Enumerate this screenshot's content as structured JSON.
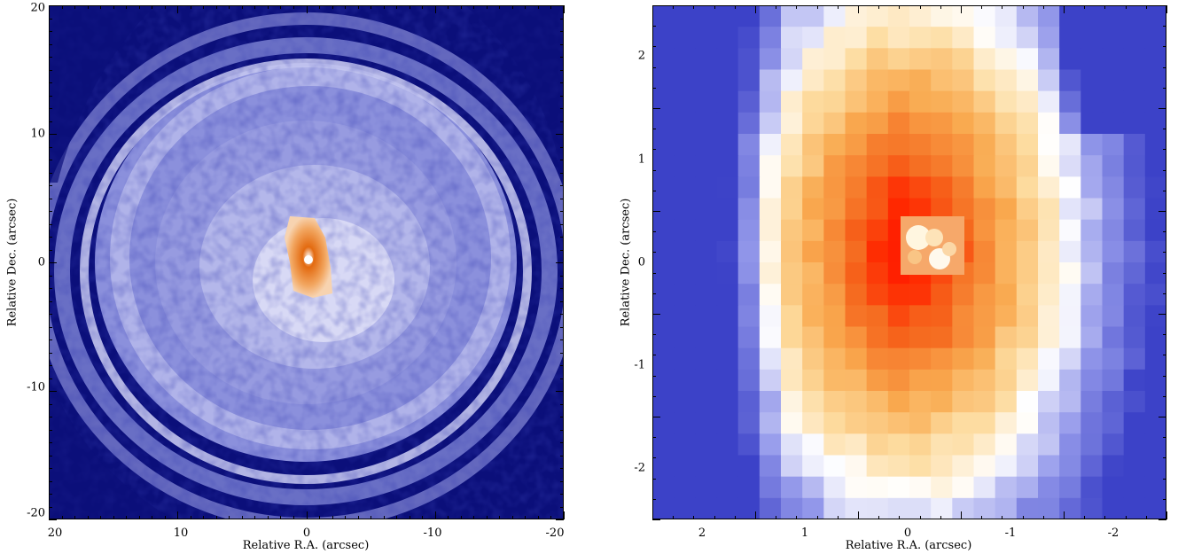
{
  "figure": {
    "left": {
      "x_axis_label": "Relative R.A. (arcsec)",
      "y_axis_label": "Relative Dec. (arcsec)",
      "x_ticks": [
        "20",
        "10",
        "0",
        "-10",
        "-20"
      ],
      "y_ticks": [
        "20",
        "10",
        "0",
        "-10",
        "-20"
      ],
      "x_range": [
        20,
        -20
      ],
      "y_range": [
        -20,
        20
      ]
    },
    "right": {
      "x_axis_label": "Relative R.A. (arcsec)",
      "y_axis_label": "Relative Dec. (arcsec)",
      "x_ticks": [
        "2",
        "1",
        "0",
        "-1",
        "-2"
      ],
      "y_ticks": [
        "2",
        "1",
        "0",
        "-1",
        "-2"
      ],
      "x_range": [
        2.5,
        -2.5
      ],
      "y_range": [
        -2.5,
        2.5
      ]
    }
  },
  "colors": {
    "dark_blue": "#0b0f7a",
    "mid_blue": "#7f84d6",
    "light_blue": "#c9cbf1",
    "white": "#ffffff",
    "orange": "#f28a1e",
    "red": "#ff1a00",
    "pale_orange": "#fde3b8"
  }
}
